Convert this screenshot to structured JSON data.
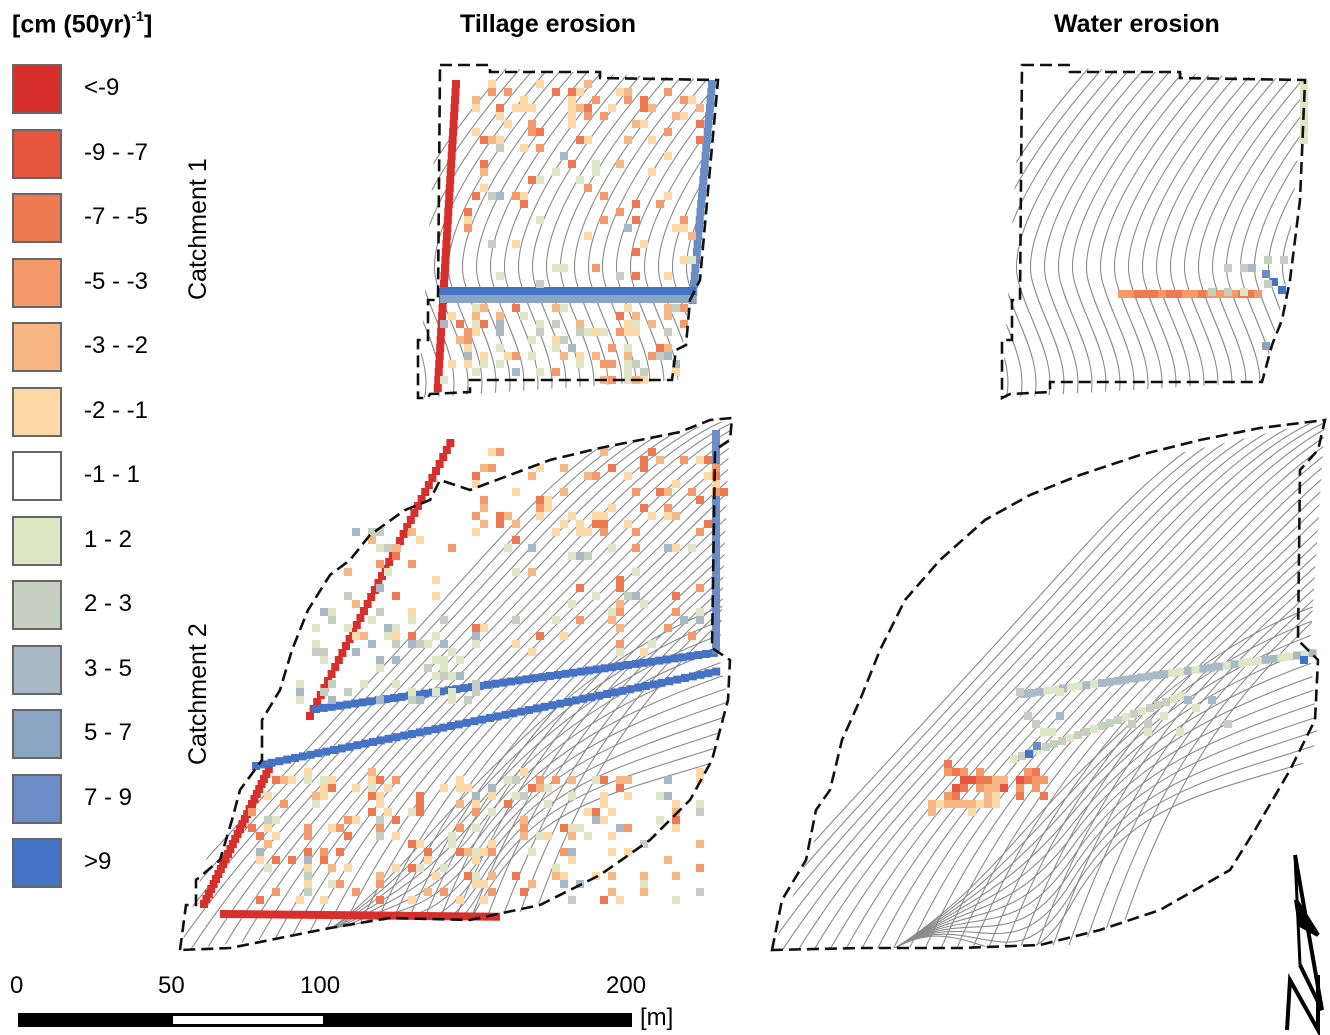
{
  "legend": {
    "title": "[cm (50yr)",
    "title_sup": "-1",
    "title_end": "]",
    "items": [
      {
        "label": "<-9",
        "color": "#d7302c"
      },
      {
        "label": "-9 - -7",
        "color": "#e5563d"
      },
      {
        "label": "-7 - -5",
        "color": "#ef7a51"
      },
      {
        "label": "-5 - -3",
        "color": "#f4996a"
      },
      {
        "label": "-3 - -2",
        "color": "#f8b886"
      },
      {
        "label": "-2 - -1",
        "color": "#fdd9a5"
      },
      {
        "label": "-1 - 1",
        "color": "#ffffff"
      },
      {
        "label": "1 - 2",
        "color": "#dfe6c6"
      },
      {
        "label": "2 - 3",
        "color": "#c5d0c1"
      },
      {
        "label": "3 - 5",
        "color": "#a9b9c6"
      },
      {
        "label": "5 - 7",
        "color": "#8aa4c4"
      },
      {
        "label": "7 - 9",
        "color": "#6b8cc4"
      },
      {
        "label": ">9",
        "color": "#4472c4"
      }
    ]
  },
  "panels": {
    "tillage_title": "Tillage erosion",
    "water_title": "Water erosion"
  },
  "catchments": {
    "c1": "Catchment 1",
    "c2": "Catchment 2"
  },
  "scale_bar": {
    "ticks": [
      "0",
      "50",
      "100",
      "200"
    ],
    "unit": "[m]"
  },
  "north_arrow": "N"
}
